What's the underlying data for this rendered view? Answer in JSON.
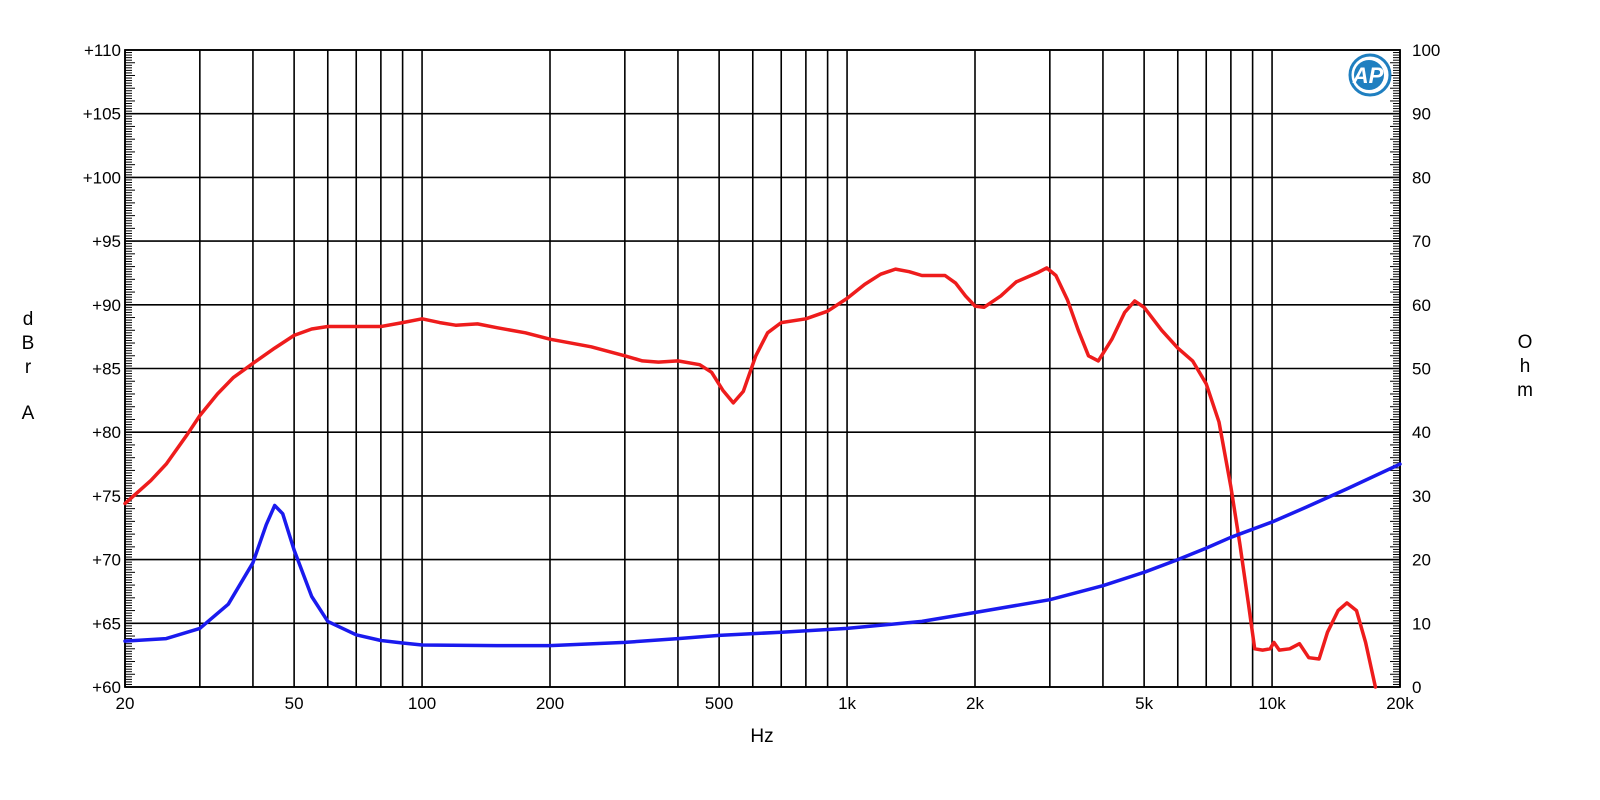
{
  "chart_data": {
    "type": "line",
    "title": "",
    "xlabel": "Hz",
    "ylabel_left": [
      "d",
      "B",
      "r",
      "A"
    ],
    "ylabel_right": [
      "O",
      "h",
      "m"
    ],
    "x_scale": "log",
    "xlim": [
      20,
      20000
    ],
    "ylim_left": [
      60,
      110
    ],
    "ylim_right": [
      0,
      100
    ],
    "grid": true,
    "legend": "none",
    "x_ticks": [
      {
        "value": 20,
        "label": "20"
      },
      {
        "value": 50,
        "label": "50"
      },
      {
        "value": 100,
        "label": "100"
      },
      {
        "value": 200,
        "label": "200"
      },
      {
        "value": 500,
        "label": "500"
      },
      {
        "value": 1000,
        "label": "1k"
      },
      {
        "value": 2000,
        "label": "2k"
      },
      {
        "value": 5000,
        "label": "5k"
      },
      {
        "value": 10000,
        "label": "10k"
      },
      {
        "value": 20000,
        "label": "20k"
      }
    ],
    "x_gridlines": [
      20,
      30,
      40,
      50,
      60,
      70,
      80,
      90,
      100,
      200,
      300,
      400,
      500,
      600,
      700,
      800,
      900,
      1000,
      2000,
      3000,
      4000,
      5000,
      6000,
      7000,
      8000,
      9000,
      10000,
      20000
    ],
    "y_left_ticks": [
      "+60",
      "+65",
      "+70",
      "+75",
      "+80",
      "+85",
      "+90",
      "+95",
      "+100",
      "+105",
      "+110"
    ],
    "y_right_ticks": [
      "0",
      "10",
      "20",
      "30",
      "40",
      "50",
      "60",
      "70",
      "80",
      "90",
      "100"
    ],
    "logo_text": "AP",
    "series": [
      {
        "axis": "left",
        "units": "dBrA",
        "color": "#ee1c1c",
        "points": [
          [
            20,
            74.4
          ],
          [
            23,
            76.2
          ],
          [
            25,
            77.5
          ],
          [
            28,
            79.8
          ],
          [
            30,
            81.3
          ],
          [
            33,
            83.0
          ],
          [
            36,
            84.3
          ],
          [
            40,
            85.4
          ],
          [
            45,
            86.6
          ],
          [
            50,
            87.6
          ],
          [
            55,
            88.1
          ],
          [
            60,
            88.3
          ],
          [
            70,
            88.3
          ],
          [
            80,
            88.3
          ],
          [
            90,
            88.6
          ],
          [
            100,
            88.9
          ],
          [
            110,
            88.6
          ],
          [
            120,
            88.4
          ],
          [
            135,
            88.5
          ],
          [
            150,
            88.2
          ],
          [
            175,
            87.8
          ],
          [
            200,
            87.3
          ],
          [
            250,
            86.7
          ],
          [
            300,
            86.0
          ],
          [
            330,
            85.6
          ],
          [
            360,
            85.5
          ],
          [
            400,
            85.6
          ],
          [
            450,
            85.3
          ],
          [
            480,
            84.7
          ],
          [
            510,
            83.3
          ],
          [
            540,
            82.3
          ],
          [
            570,
            83.2
          ],
          [
            610,
            86.0
          ],
          [
            650,
            87.8
          ],
          [
            700,
            88.6
          ],
          [
            800,
            88.9
          ],
          [
            900,
            89.5
          ],
          [
            1000,
            90.5
          ],
          [
            1100,
            91.6
          ],
          [
            1200,
            92.4
          ],
          [
            1300,
            92.8
          ],
          [
            1400,
            92.6
          ],
          [
            1500,
            92.3
          ],
          [
            1700,
            92.3
          ],
          [
            1800,
            91.7
          ],
          [
            1900,
            90.7
          ],
          [
            2000,
            89.9
          ],
          [
            2100,
            89.8
          ],
          [
            2300,
            90.7
          ],
          [
            2500,
            91.8
          ],
          [
            2800,
            92.5
          ],
          [
            2950,
            92.9
          ],
          [
            3100,
            92.3
          ],
          [
            3300,
            90.4
          ],
          [
            3500,
            88.0
          ],
          [
            3700,
            86.0
          ],
          [
            3900,
            85.6
          ],
          [
            4200,
            87.3
          ],
          [
            4500,
            89.4
          ],
          [
            4750,
            90.3
          ],
          [
            5000,
            89.8
          ],
          [
            5500,
            88.0
          ],
          [
            6000,
            86.6
          ],
          [
            6500,
            85.6
          ],
          [
            7000,
            83.8
          ],
          [
            7500,
            80.8
          ],
          [
            8000,
            75.7
          ],
          [
            8400,
            71.2
          ],
          [
            8800,
            66.5
          ],
          [
            9100,
            63.0
          ],
          [
            9500,
            62.9
          ],
          [
            9900,
            63.0
          ],
          [
            10100,
            63.5
          ],
          [
            10400,
            62.9
          ],
          [
            11000,
            63.0
          ],
          [
            11600,
            63.4
          ],
          [
            12200,
            62.3
          ],
          [
            12900,
            62.2
          ],
          [
            13500,
            64.3
          ],
          [
            14300,
            66.0
          ],
          [
            15000,
            66.6
          ],
          [
            15800,
            66.0
          ],
          [
            16600,
            63.5
          ],
          [
            17500,
            60.0
          ]
        ]
      },
      {
        "axis": "right",
        "units": "Ohm",
        "color": "#1a1aee",
        "points": [
          [
            20,
            7.2
          ],
          [
            25,
            7.6
          ],
          [
            30,
            9.2
          ],
          [
            35,
            13.0
          ],
          [
            40,
            19.5
          ],
          [
            43,
            25.5
          ],
          [
            45,
            28.5
          ],
          [
            47,
            27.2
          ],
          [
            50,
            21.5
          ],
          [
            55,
            14.2
          ],
          [
            60,
            10.3
          ],
          [
            70,
            8.2
          ],
          [
            80,
            7.3
          ],
          [
            90,
            6.9
          ],
          [
            100,
            6.6
          ],
          [
            150,
            6.5
          ],
          [
            200,
            6.5
          ],
          [
            300,
            7.0
          ],
          [
            400,
            7.6
          ],
          [
            500,
            8.1
          ],
          [
            700,
            8.6
          ],
          [
            1000,
            9.2
          ],
          [
            1500,
            10.3
          ],
          [
            2000,
            11.7
          ],
          [
            3000,
            13.7
          ],
          [
            4000,
            15.9
          ],
          [
            5000,
            18.0
          ],
          [
            6000,
            20.0
          ],
          [
            7000,
            21.8
          ],
          [
            8000,
            23.5
          ],
          [
            10000,
            25.9
          ],
          [
            12000,
            28.2
          ],
          [
            15000,
            31.1
          ],
          [
            20000,
            35.0
          ]
        ]
      }
    ]
  }
}
